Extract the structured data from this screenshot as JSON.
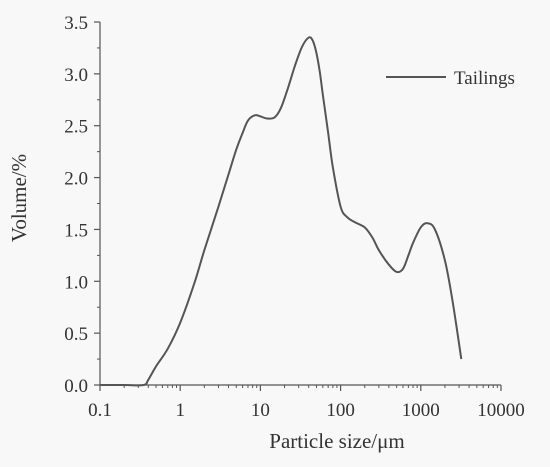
{
  "chart_data": {
    "type": "line",
    "xlabel": "Particle size/μm",
    "ylabel": "Volume/%",
    "xscale": "log",
    "xlim": [
      0.1,
      10000
    ],
    "ylim": [
      0,
      3.5
    ],
    "x_ticks": [
      {
        "value": 0.1,
        "label": "0.1"
      },
      {
        "value": 1,
        "label": "1"
      },
      {
        "value": 10,
        "label": "10"
      },
      {
        "value": 100,
        "label": "100"
      },
      {
        "value": 1000,
        "label": "1000"
      },
      {
        "value": 10000,
        "label": "10000"
      }
    ],
    "y_ticks": [
      {
        "value": 0.0,
        "label": "0.0"
      },
      {
        "value": 0.5,
        "label": "0.5"
      },
      {
        "value": 1.0,
        "label": "1.0"
      },
      {
        "value": 1.5,
        "label": "1.5"
      },
      {
        "value": 2.0,
        "label": "2.0"
      },
      {
        "value": 2.5,
        "label": "2.5"
      },
      {
        "value": 3.0,
        "label": "3.0"
      },
      {
        "value": 3.5,
        "label": "3.5"
      }
    ],
    "grid": false,
    "legend_position": "top-right",
    "series": [
      {
        "name": "Tailings",
        "color": "#555555",
        "x": [
          0.1,
          0.2,
          0.35,
          0.4,
          0.5,
          0.7,
          1.0,
          1.5,
          2.0,
          3.0,
          4.0,
          5.0,
          6.0,
          7.0,
          8.5,
          10,
          12,
          15,
          18,
          22,
          27,
          33,
          40,
          45,
          50,
          55,
          60,
          70,
          80,
          100,
          120,
          150,
          200,
          250,
          300,
          400,
          500,
          600,
          700,
          800,
          1000,
          1200,
          1500,
          2000,
          2500,
          3200
        ],
        "y": [
          0.0,
          0.0,
          0.0,
          0.05,
          0.18,
          0.35,
          0.6,
          0.98,
          1.3,
          1.72,
          2.03,
          2.27,
          2.43,
          2.55,
          2.6,
          2.59,
          2.57,
          2.58,
          2.67,
          2.86,
          3.08,
          3.26,
          3.35,
          3.32,
          3.2,
          3.02,
          2.8,
          2.43,
          2.1,
          1.72,
          1.62,
          1.57,
          1.52,
          1.42,
          1.3,
          1.16,
          1.09,
          1.12,
          1.25,
          1.37,
          1.52,
          1.56,
          1.5,
          1.2,
          0.8,
          0.25
        ]
      }
    ]
  }
}
